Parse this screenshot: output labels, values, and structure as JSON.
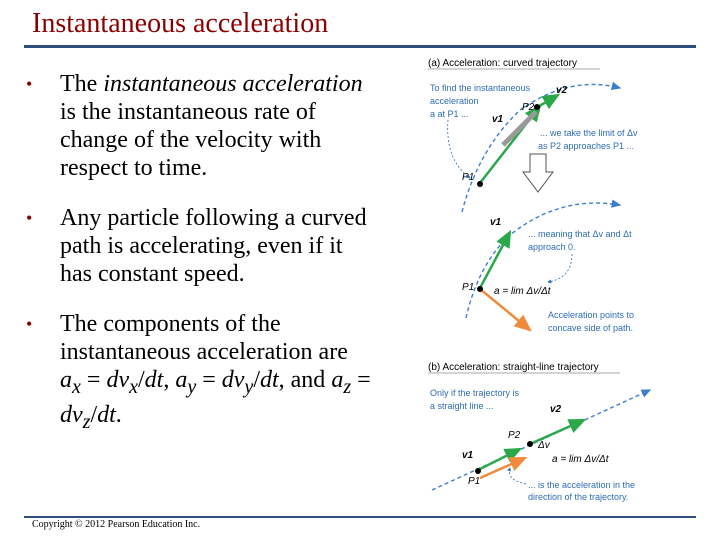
{
  "slide": {
    "title": "Instantaneous acceleration",
    "copyright": "Copyright © 2012 Pearson Education Inc."
  },
  "bullets": [
    {
      "segments": [
        "The ",
        "instantaneous acceleration",
        " is the instantaneous rate of change of the velocity with respect to time."
      ]
    },
    {
      "text": "Any particle following a curved path is accelerating, even if it has constant speed."
    },
    {
      "segments": [
        "The components of the instantaneous acceleration are ",
        "a",
        "x",
        " = ",
        "dv",
        "x",
        "/",
        "dt",
        ", ",
        "a",
        "y",
        " = ",
        "dv",
        "y",
        "/",
        "dt",
        ", and ",
        "a",
        "z",
        " = ",
        "dv",
        "z",
        "/",
        "dt",
        "."
      ]
    }
  ],
  "figure_a": {
    "heading": "(a) Acceleration: curved trajectory",
    "note_find": [
      "To find the instantaneous",
      "acceleration",
      "a at P1 ..."
    ],
    "note_limit": [
      "... we take the limit of Δv",
      "as P2 approaches P1 ..."
    ],
    "note_meaning": [
      "... meaning that Δv and Δt",
      "approach 0."
    ],
    "note_points": [
      "Acceleration points to",
      "concave side of path."
    ],
    "label_v1": "v1",
    "label_v2": "v2",
    "label_p1": "P1",
    "label_p2": "P2",
    "label_a": "a = lim Δv/Δt"
  },
  "figure_b": {
    "heading": "(b) Acceleration: straight-line trajectory",
    "note_only": [
      "Only if the trajectory is",
      "a straight line ..."
    ],
    "note_is": [
      "... is the acceleration in the",
      "direction of the trajectory."
    ],
    "label_v1": "v1",
    "label_v2": "v2",
    "label_p1": "P1",
    "label_p2": "P2",
    "label_dv": "Δv",
    "label_a": "a = lim Δv/Δt"
  },
  "colors": {
    "title": "#8b0000",
    "rule": "#2e4e7e",
    "velocity": "#2aa84a",
    "acceleration": "#f08a3c",
    "path": "#3a7fd0",
    "note": "#2e6db4"
  }
}
